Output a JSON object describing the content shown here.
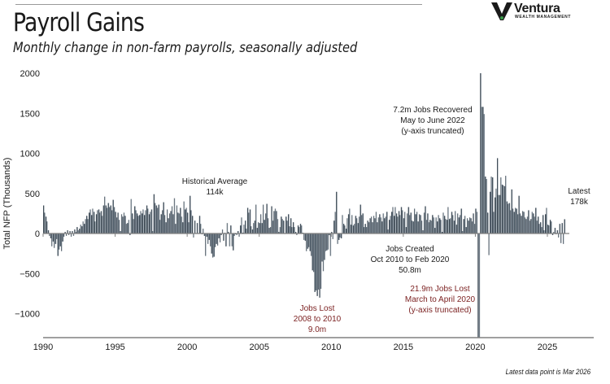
{
  "header": {
    "title": "Payroll Gains",
    "subtitle": "Monthly change in non-farm payrolls, seasonally adjusted"
  },
  "brand": {
    "name": "Ventura",
    "tagline": "WEALTH MANAGEMENT",
    "logo_icon": "v-chevron-logo",
    "logo_accent": "#3a9a4a"
  },
  "footnote": "Latest data point is Mar 2026",
  "colors": {
    "bar": "#5d6b78",
    "bar_light": "#a9b4be",
    "axis": "#808080",
    "annotation_dark": "#1a1a1a",
    "annotation_red": "#7a1f1f"
  },
  "chart_data": {
    "type": "bar",
    "title": "Payroll Gains",
    "subtitle": "Monthly change in non-farm payrolls, seasonally adjusted",
    "xlabel": "",
    "ylabel": "Total NFP (Thousands)",
    "xlim": [
      1990,
      2028
    ],
    "ylim": [
      -1300,
      2000
    ],
    "x_ticks": [
      "1990",
      "1995",
      "2000",
      "2005",
      "2010",
      "2015",
      "2020",
      "2025"
    ],
    "y_ticks": [
      "2000",
      "1500",
      "1000",
      "500",
      "0",
      "-500",
      "-1000"
    ],
    "y_tick_values": [
      2000,
      1500,
      1000,
      500,
      0,
      -500,
      -1000
    ],
    "grid": false,
    "legend": "none",
    "start": "1990-01",
    "frequency": "monthly",
    "yearly_profile_note": "Monthly values approximated from bar heights; truncated bars clipped at axis limits",
    "series": [
      {
        "name": "Total NFP change (thousands)",
        "yearly_values": {
          "1990": [
            350,
            260,
            210,
            150,
            40,
            -30,
            -60,
            -160,
            -100,
            -180,
            -130,
            -70
          ],
          "1991": [
            -280,
            -200,
            -160,
            -220,
            -100,
            -40,
            20,
            -30,
            40,
            -20,
            30,
            -40
          ],
          "1992": [
            30,
            -30,
            50,
            20,
            80,
            40,
            60,
            110,
            90,
            150,
            120,
            180
          ],
          "1993": [
            220,
            180,
            260,
            300,
            230,
            310,
            270,
            150,
            240,
            290,
            300,
            260
          ],
          "1994": [
            280,
            220,
            350,
            460,
            350,
            320,
            380,
            330,
            350,
            290,
            420,
            330
          ],
          "1995": [
            270,
            200,
            260,
            170,
            30,
            240,
            210,
            260,
            220,
            120,
            130,
            170
          ],
          "1996": [
            -20,
            430,
            250,
            180,
            340,
            290,
            250,
            220,
            230,
            280,
            250,
            300
          ],
          "1997": [
            230,
            290,
            350,
            310,
            240,
            270,
            300,
            30,
            490,
            380,
            350,
            320
          ],
          "1998": [
            360,
            170,
            240,
            290,
            390,
            230,
            140,
            300,
            190,
            250,
            280,
            340
          ],
          "1999": [
            240,
            440,
            120,
            350,
            260,
            250,
            320,
            210,
            140,
            400,
            300,
            320
          ],
          "2000": [
            260,
            140,
            470,
            290,
            220,
            -50,
            160,
            0,
            130,
            0,
            220,
            120
          ],
          "2001": [
            -10,
            60,
            -30,
            -280,
            -40,
            -130,
            -80,
            -160,
            -250,
            -300,
            -290,
            -170
          ],
          "2002": [
            -130,
            -150,
            -60,
            -110,
            -20,
            50,
            -90,
            10,
            -160,
            130,
            20,
            -160
          ],
          "2003": [
            100,
            -160,
            -210,
            -30,
            -10,
            -20,
            30,
            -40,
            100,
            200,
            10,
            110
          ],
          "2004": [
            160,
            60,
            320,
            260,
            300,
            90,
            50,
            130,
            160,
            360,
            70,
            140
          ],
          "2005": [
            130,
            240,
            130,
            360,
            170,
            250,
            370,
            190,
            70,
            80,
            340,
            160
          ],
          "2006": [
            280,
            310,
            280,
            180,
            20,
            80,
            210,
            180,
            160,
            0,
            210,
            160
          ],
          "2007": [
            240,
            90,
            190,
            80,
            140,
            80,
            20,
            -20,
            100,
            80,
            120,
            100
          ],
          "2008": [
            10,
            -80,
            -90,
            -220,
            -190,
            -170,
            -220,
            -280,
            -460,
            -480,
            -730,
            -710
          ],
          "2009": [
            -780,
            -700,
            -800,
            -690,
            -350,
            -470,
            -330,
            -220,
            -210,
            -200,
            -20,
            -280
          ],
          "2010": [
            20,
            -70,
            160,
            270,
            520,
            -130,
            -80,
            -50,
            -60,
            230,
            120,
            100
          ],
          "2011": [
            60,
            190,
            240,
            310,
            110,
            230,
            100,
            120,
            220,
            190,
            130,
            210
          ],
          "2012": [
            360,
            230,
            250,
            80,
            120,
            80,
            160,
            140,
            190,
            210,
            140,
            220
          ],
          "2013": [
            190,
            270,
            140,
            200,
            240,
            200,
            150,
            250,
            190,
            210,
            270,
            50
          ],
          "2014": [
            170,
            220,
            270,
            330,
            220,
            330,
            250,
            210,
            280,
            230,
            330,
            290
          ],
          "2015": [
            190,
            270,
            80,
            250,
            330,
            230,
            260,
            160,
            150,
            310,
            240,
            270
          ],
          "2016": [
            150,
            240,
            230,
            160,
            40,
            260,
            340,
            170,
            250,
            140,
            170,
            160
          ],
          "2017": [
            230,
            200,
            70,
            200,
            150,
            230,
            190,
            170,
            20,
            260,
            220,
            180
          ],
          "2018": [
            170,
            330,
            180,
            190,
            270,
            230,
            160,
            280,
            110,
            250,
            200,
            230
          ],
          "2019": [
            310,
            30,
            180,
            220,
            80,
            190,
            160,
            200,
            190,
            150,
            250,
            120
          ],
          "2020": [
            310,
            270,
            -1300,
            -1300,
            2000,
            1580,
            1580,
            1490,
            710,
            680,
            260,
            -270
          ],
          "2021": [
            520,
            710,
            700,
            270,
            450,
            560,
            940,
            480,
            480,
            700,
            610,
            600
          ],
          "2022": [
            590,
            720,
            400,
            370,
            380,
            290,
            550,
            310,
            270,
            320,
            310,
            240
          ],
          "2023": [
            470,
            250,
            220,
            280,
            270,
            200,
            180,
            210,
            290,
            160,
            180,
            270
          ],
          "2024": [
            250,
            210,
            320,
            160,
            210,
            120,
            140,
            80,
            230,
            40,
            240,
            320
          ],
          "2025": [
            110,
            100,
            170,
            150,
            -20,
            20,
            70,
            -10,
            40,
            -50,
            120,
            -120
          ],
          "2026": [
            130,
            -130,
            178
          ]
        }
      }
    ],
    "annotations": [
      {
        "text_lines": [
          "Historical Average",
          "114k"
        ],
        "color": "dark",
        "near": "2001"
      },
      {
        "text_lines": [
          "Jobs Lost",
          "2008 to 2010",
          "9.0m"
        ],
        "color": "red",
        "near": "2009"
      },
      {
        "text_lines": [
          "Jobs Created",
          "Oct 2010 to Feb 2020",
          "50.8m"
        ],
        "color": "dark",
        "near": "2015"
      },
      {
        "text_lines": [
          "21.9m Jobs Lost",
          "March to April 2020",
          "(y-axis truncated)"
        ],
        "color": "red",
        "near": "2020"
      },
      {
        "text_lines": [
          "7.2m Jobs Recovered",
          "May to June 2022",
          "(y-axis truncated)"
        ],
        "color": "dark",
        "near": "2020"
      },
      {
        "text_lines": [
          "Latest",
          "178k"
        ],
        "color": "dark",
        "near": "2026"
      }
    ]
  }
}
